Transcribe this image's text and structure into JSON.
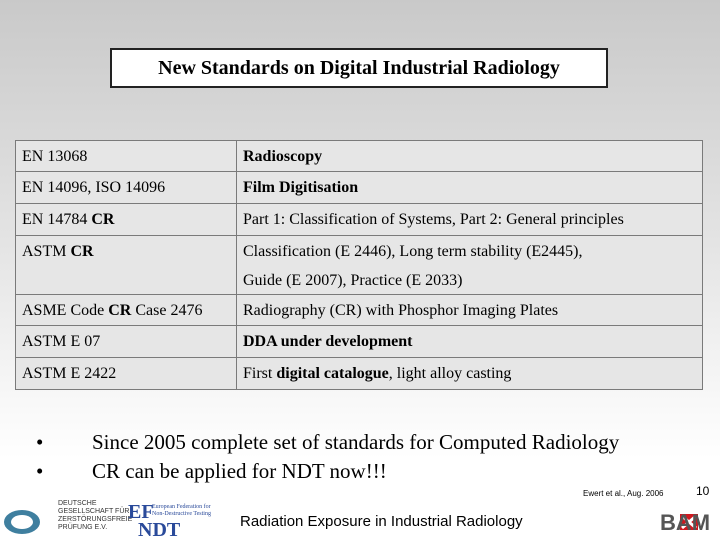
{
  "title": "New Standards on Digital Industrial Radiology",
  "table": {
    "rows": [
      [
        [
          [
            {
              "text": "EN 13068"
            }
          ]
        ],
        [
          [
            {
              "text": "Radioscopy",
              "bold": true
            }
          ]
        ]
      ],
      [
        [
          [
            {
              "text": "EN 14096, ISO 14096"
            }
          ]
        ],
        [
          [
            {
              "text": "Film Digitisation",
              "bold": true
            }
          ]
        ]
      ],
      [
        [
          [
            {
              "text": "EN 14784 "
            },
            {
              "text": "CR",
              "bold": true
            }
          ]
        ],
        [
          [
            {
              "text": "Part 1: Classification of Systems, Part 2: General principles"
            }
          ]
        ]
      ],
      [
        [
          [
            {
              "text": "ASTM "
            },
            {
              "text": "CR",
              "bold": true
            }
          ]
        ],
        [
          [
            {
              "text": "Classification (E 2446), Long term stability (E2445),"
            }
          ],
          [
            {
              "text": "Guide (E 2007), Practice (E 2033)"
            }
          ]
        ]
      ],
      [
        [
          [
            {
              "text": "ASME Code "
            },
            {
              "text": "CR",
              "bold": true
            },
            {
              "text": " Case 2476"
            }
          ]
        ],
        [
          [
            {
              "text": "Radiography (CR) with Phosphor Imaging Plates"
            }
          ]
        ]
      ],
      [
        [
          [
            {
              "text": "ASTM E 07"
            }
          ]
        ],
        [
          [
            {
              "text": "DDA under development",
              "bold": true
            }
          ]
        ]
      ],
      [
        [
          [
            {
              "text": "ASTM E 2422"
            }
          ]
        ],
        [
          [
            {
              "text": "First "
            },
            {
              "text": "digital catalogue",
              "bold": true
            },
            {
              "text": ", light alloy casting"
            }
          ]
        ]
      ]
    ]
  },
  "bullets": [
    "Since 2005 complete set of standards for Computed Radiology",
    "CR can be applied for NDT now!!!"
  ],
  "footer": {
    "citation": "Ewert et al., Aug. 2006",
    "page": "10",
    "text": "Radiation Exposure in Industrial Radiology",
    "dgzfp": [
      "DEUTSCHE",
      "GESELLSCHAFT FÜR",
      "ZERSTÖRUNGSFREIE",
      "PRÜFUNG E.V."
    ],
    "efndt": {
      "mark1": "EF",
      "mark2": "NDT",
      "lines": [
        "European Federation for",
        "Non-Destructive Testing"
      ]
    },
    "bam": "BAM"
  }
}
